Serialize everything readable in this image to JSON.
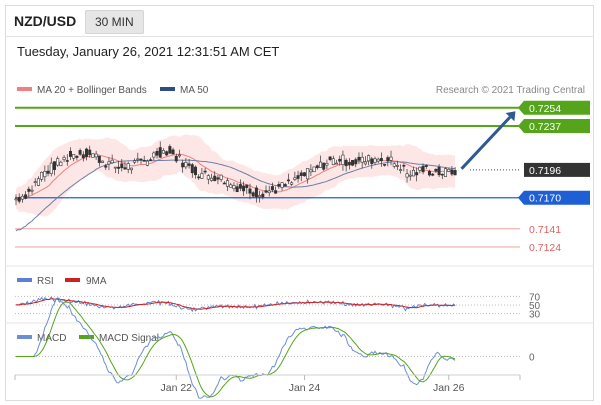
{
  "header": {
    "pair": "NZD/USD",
    "timeframe": "30 MIN"
  },
  "timestamp": "Tuesday, January 26, 2021 12:31:51 AM CET",
  "colors": {
    "bollinger": "#f08080",
    "ma50": "#2c4e82",
    "green": "#55a51c",
    "blue": "#1f5fd6",
    "red": "#e06060",
    "current": "#333333",
    "rsi": "#5b7fd6",
    "rsi_ma": "#cc2222",
    "macd": "#6a8fd8",
    "macd_signal": "#55a51c"
  },
  "chart_data": [
    {
      "type": "candlestick",
      "legend": [
        {
          "label": "MA 20 + Bollinger Bands",
          "color": "#f08080"
        },
        {
          "label": "MA 50",
          "color": "#2c4e82"
        }
      ],
      "credit": "Research © 2021 Trading Central",
      "ylim": [
        0.711,
        0.7265
      ],
      "x_ticks": [
        "Jan 22",
        "Jan 24",
        "Jan 26"
      ],
      "levels": [
        {
          "value": 0.7254,
          "label": "0.7254",
          "kind": "resistance"
        },
        {
          "value": 0.7237,
          "label": "0.7237",
          "kind": "resistance"
        },
        {
          "value": 0.7196,
          "label": "0.7196",
          "kind": "current"
        },
        {
          "value": 0.717,
          "label": "0.7170",
          "kind": "pivot"
        },
        {
          "value": 0.7141,
          "label": "0.7141",
          "kind": "support"
        },
        {
          "value": 0.7124,
          "label": "0.7124",
          "kind": "support"
        }
      ],
      "price_path": [
        [
          0,
          0.7169
        ],
        [
          8,
          0.7175
        ],
        [
          16,
          0.7192
        ],
        [
          24,
          0.72
        ],
        [
          32,
          0.7208
        ],
        [
          40,
          0.7212
        ],
        [
          48,
          0.721
        ],
        [
          56,
          0.7203
        ],
        [
          64,
          0.7198
        ],
        [
          72,
          0.72
        ],
        [
          80,
          0.7204
        ],
        [
          88,
          0.7212
        ],
        [
          94,
          0.7214
        ],
        [
          102,
          0.7206
        ],
        [
          110,
          0.7196
        ],
        [
          118,
          0.7191
        ],
        [
          126,
          0.719
        ],
        [
          134,
          0.7183
        ],
        [
          142,
          0.7178
        ],
        [
          150,
          0.7175
        ],
        [
          158,
          0.7176
        ],
        [
          166,
          0.718
        ],
        [
          172,
          0.7184
        ],
        [
          180,
          0.7191
        ],
        [
          188,
          0.7198
        ],
        [
          196,
          0.7204
        ],
        [
          202,
          0.7206
        ],
        [
          210,
          0.7203
        ],
        [
          218,
          0.7205
        ],
        [
          226,
          0.7207
        ],
        [
          234,
          0.7204
        ],
        [
          240,
          0.72
        ],
        [
          244,
          0.7192
        ],
        [
          250,
          0.7194
        ],
        [
          256,
          0.7196
        ],
        [
          262,
          0.7194
        ],
        [
          268,
          0.7193
        ],
        [
          274,
          0.7195
        ]
      ],
      "projection": {
        "from": [
          278,
          0.7197
        ],
        "to": [
          302,
          0.7249
        ]
      }
    },
    {
      "type": "line",
      "name": "RSI",
      "legend": [
        {
          "label": "RSI",
          "color": "#5b7fd6"
        },
        {
          "label": "9MA",
          "color": "#cc2222"
        }
      ],
      "levels": [
        {
          "value": 70,
          "label": "70"
        },
        {
          "value": 50,
          "label": "50"
        },
        {
          "value": 30,
          "label": "30"
        }
      ],
      "ylim": [
        20,
        80
      ]
    },
    {
      "type": "line",
      "name": "MACD",
      "legend": [
        {
          "label": "MACD",
          "color": "#6a8fd8"
        },
        {
          "label": "MACD Signal",
          "color": "#55a51c"
        }
      ],
      "levels": [
        {
          "value": 0,
          "label": "0"
        }
      ],
      "ylim": [
        -10,
        10
      ]
    }
  ]
}
